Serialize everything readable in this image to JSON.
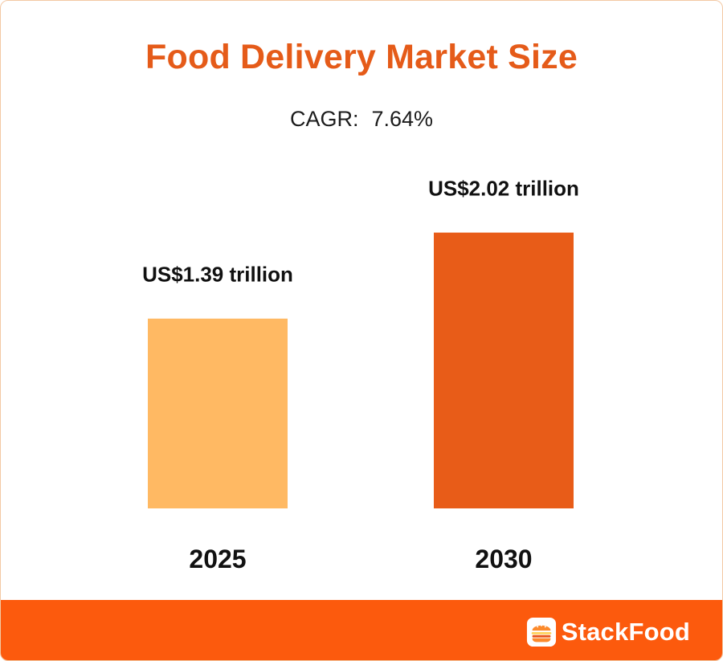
{
  "header": {
    "title": "Food Delivery Market Size",
    "cagr_label": "CAGR:",
    "cagr_value": "7.64%"
  },
  "chart_data": {
    "type": "bar",
    "title": "Food Delivery Market Size",
    "categories": [
      "2025",
      "2030"
    ],
    "values": [
      1.39,
      2.02
    ],
    "unit": "US$ trillion",
    "data_labels": [
      "US$1.39 trillion",
      "US$2.02 trillion"
    ],
    "colors": [
      "#ffb963",
      "#e85c18"
    ],
    "xlabel": "",
    "ylabel": "",
    "ylim": [
      0,
      2.4
    ],
    "grid": false,
    "legend": "none"
  },
  "footer": {
    "brand_name": "StackFood",
    "brand_icon": "burger-icon",
    "background": "#fc5a0d"
  },
  "theme": {
    "title_color": "#e55b19",
    "text_color": "#111111"
  }
}
